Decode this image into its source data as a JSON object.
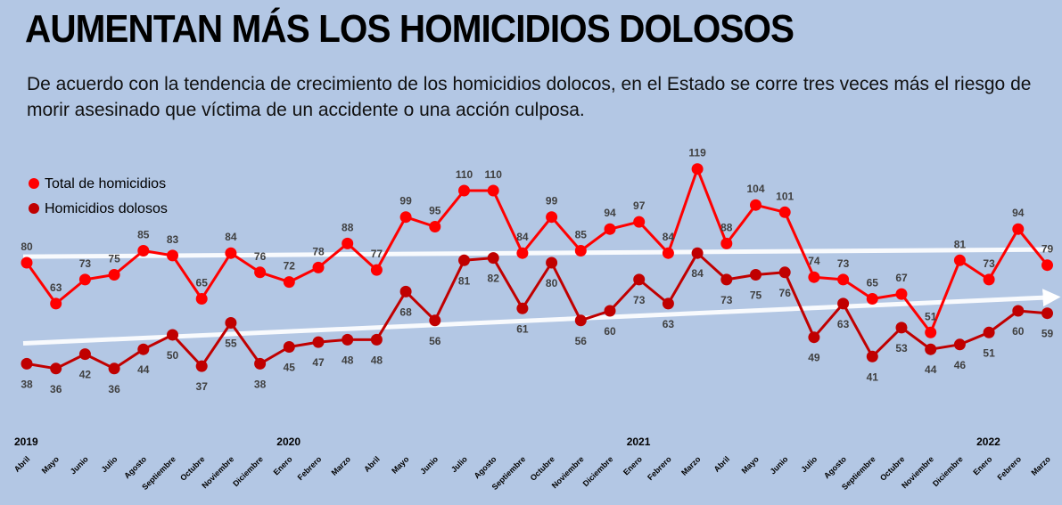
{
  "title": "AUMENTAN MÁS LOS HOMICIDIOS DOLOSOS",
  "subtitle": "De acuerdo con la tendencia de crecimiento de los homicidios dolocos, en el Estado se corre tres veces más el riesgo de morir asesinado que víctima de un accidente o una acción culposa.",
  "colors": {
    "total": "#ff0000",
    "dolosos": "#c00000",
    "trend": "#ffffff",
    "background": "#b3c7e4"
  },
  "chart_data": {
    "type": "line",
    "categories": [
      "Abril",
      "Mayo",
      "Junio",
      "Julio",
      "Agosto",
      "Septiembre",
      "Octubre",
      "Noviembre",
      "Diciembre",
      "Enero",
      "Febrero",
      "Marzo",
      "Abril",
      "Mayo",
      "Junio",
      "Julio",
      "Agosto",
      "Septiembre",
      "Octubre",
      "Noviembre",
      "Diciembre",
      "Enero",
      "Febrero",
      "Marzo",
      "Abril",
      "Mayo",
      "Junio",
      "Julio",
      "Agosto",
      "Septiembre",
      "Octubre",
      "Noviembre",
      "Diciembre",
      "Enero",
      "Febrero",
      "Marzo"
    ],
    "years": [
      {
        "label": "2019",
        "index": 0
      },
      {
        "label": "2020",
        "index": 9
      },
      {
        "label": "2021",
        "index": 21
      },
      {
        "label": "2022",
        "index": 33
      }
    ],
    "series": [
      {
        "name": "Total de homicidios",
        "values": [
          80,
          63,
          73,
          75,
          85,
          83,
          65,
          84,
          76,
          72,
          78,
          88,
          77,
          99,
          95,
          110,
          110,
          84,
          99,
          85,
          94,
          97,
          84,
          119,
          88,
          104,
          101,
          74,
          73,
          65,
          67,
          51,
          81,
          73,
          94,
          79
        ]
      },
      {
        "name": "Homicidios dolosos",
        "values": [
          38,
          36,
          42,
          36,
          44,
          50,
          37,
          55,
          38,
          45,
          47,
          48,
          48,
          68,
          56,
          81,
          82,
          61,
          80,
          56,
          60,
          73,
          63,
          84,
          73,
          75,
          76,
          49,
          63,
          41,
          53,
          44,
          46,
          51,
          60,
          59
        ]
      }
    ],
    "trendlines": true,
    "legend_position": "top-left",
    "grid": false
  }
}
